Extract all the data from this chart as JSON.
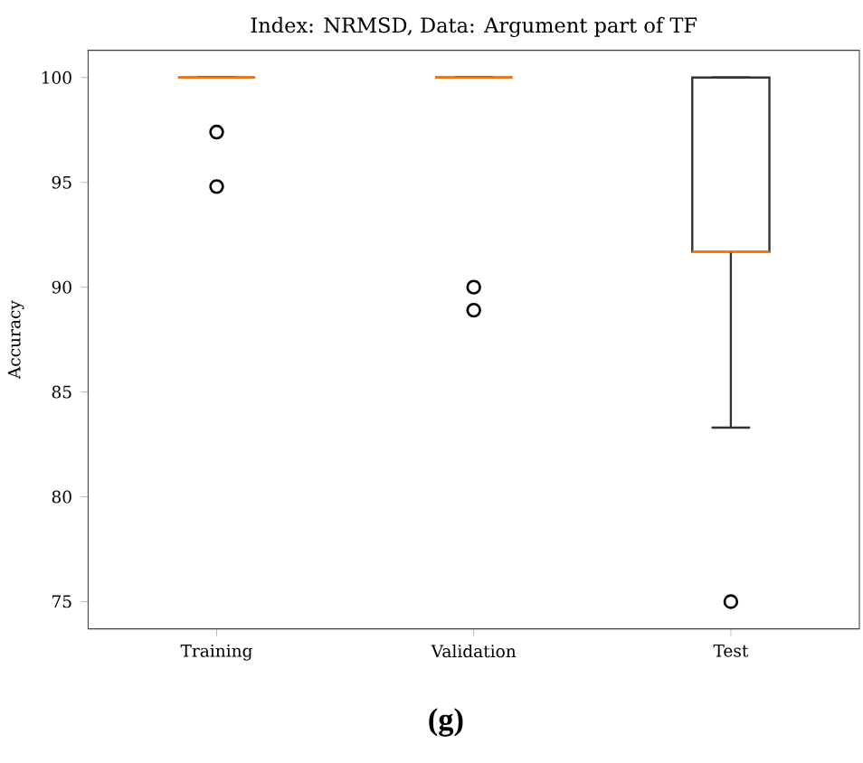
{
  "chart_data": {
    "type": "box",
    "title": "Index: NRMSD, Data: Argument part of TF",
    "ylabel": "Accuracy",
    "categories": [
      "Training",
      "Validation",
      "Test"
    ],
    "boxes": [
      {
        "low": 100,
        "q1": 100,
        "median": 100,
        "q3": 100,
        "high": 100,
        "outliers": [
          97.4,
          94.8
        ]
      },
      {
        "low": 100,
        "q1": 100,
        "median": 100,
        "q3": 100,
        "high": 100,
        "outliers": [
          90.0,
          88.9
        ]
      },
      {
        "low": 83.3,
        "q1": 91.7,
        "median": 91.7,
        "q3": 100,
        "high": 100,
        "outliers": [
          75
        ]
      }
    ],
    "ylim": [
      73.7,
      101.3
    ],
    "yticks": [
      75,
      80,
      85,
      90,
      95,
      100
    ],
    "annotations": [
      "(g)"
    ]
  }
}
